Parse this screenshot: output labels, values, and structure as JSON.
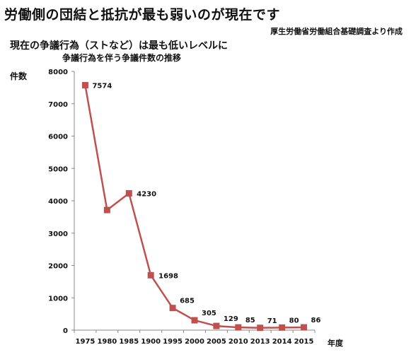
{
  "header": {
    "title": "労働側の団結と抵抗が最も弱いのが現在です",
    "source": "厚生労働省労働組合基礎調査より作成",
    "subtitle_line1": "現在の争議行為（ストなど）は最も低いレベルに",
    "subtitle_line2": "争議行為を伴う争議件数の推移"
  },
  "chart_data": {
    "type": "line",
    "title": "争議行為を伴う争議件数の推移",
    "xlabel": "年度",
    "ylabel": "件数",
    "ylim": [
      0,
      8000
    ],
    "yticks": [
      0,
      1000,
      2000,
      3000,
      4000,
      5000,
      6000,
      7000,
      8000
    ],
    "categories": [
      "1975",
      "1980",
      "1985",
      "1900",
      "1995",
      "2000",
      "2005",
      "2010",
      "2013",
      "2014",
      "2015"
    ],
    "series": [
      {
        "values": [
          7574,
          3714,
          4230,
          1698,
          685,
          305,
          129,
          85,
          71,
          80,
          86
        ],
        "labels": [
          "7574",
          "",
          "4230",
          "1698",
          "685",
          "305",
          "129",
          "85",
          "71",
          "80",
          "86"
        ],
        "color": "#c0504d"
      }
    ],
    "grid": false,
    "legend": "none"
  }
}
